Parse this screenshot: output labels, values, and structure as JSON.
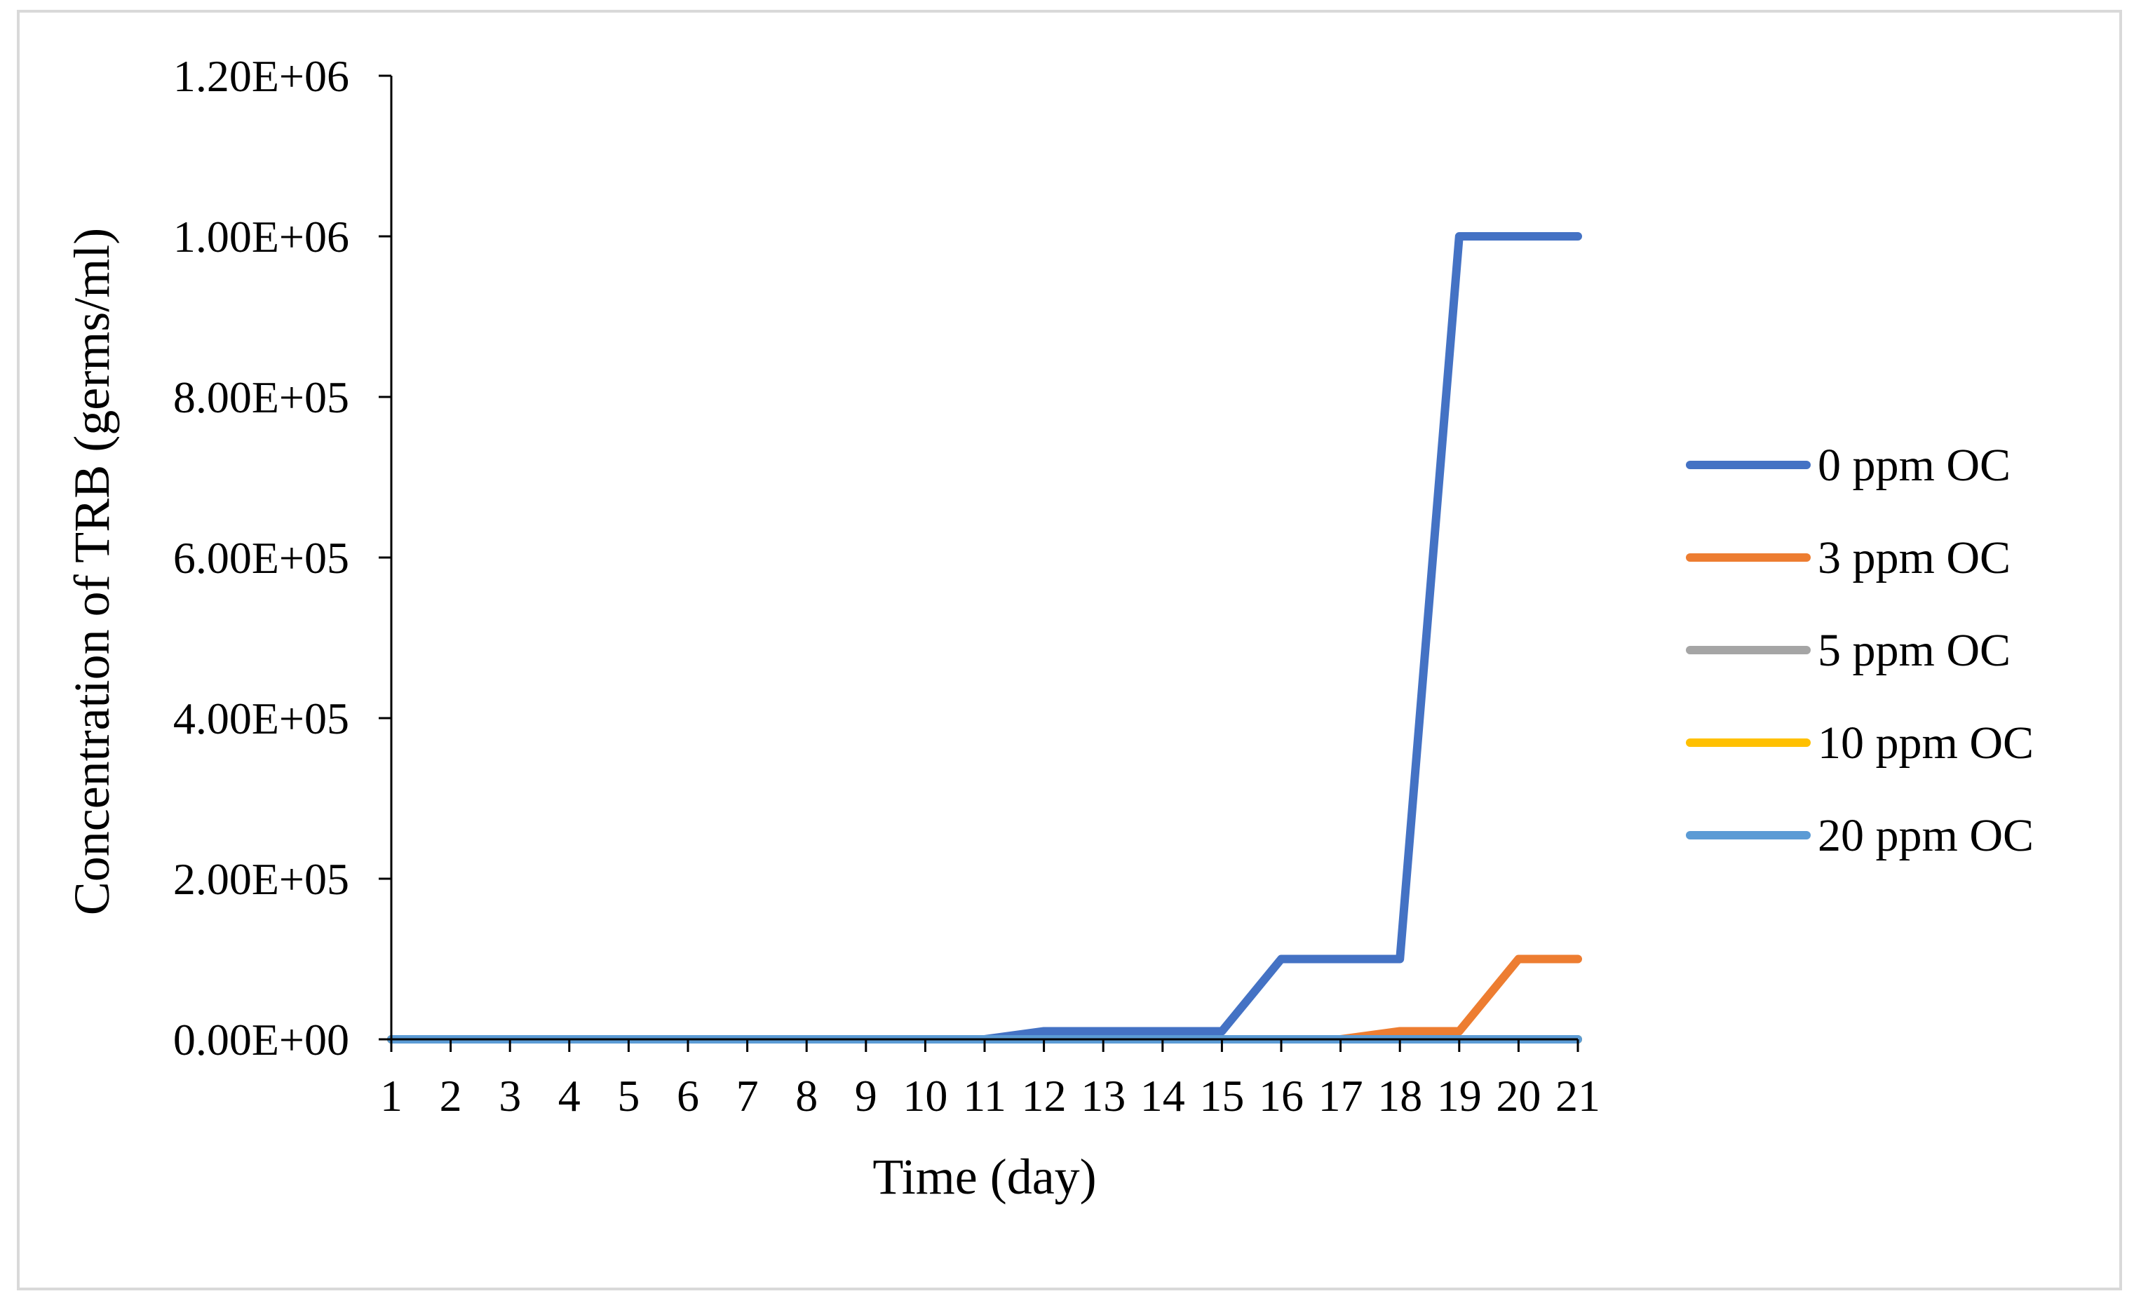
{
  "chart_data": {
    "type": "line",
    "title": "",
    "xlabel": "Time (day)",
    "ylabel": "Concentration of TRB (germs/ml)",
    "ylim": [
      0,
      1200000
    ],
    "y_ticks": [
      "0.00E+00",
      "2.00E+05",
      "4.00E+05",
      "6.00E+05",
      "8.00E+05",
      "1.00E+06",
      "1.20E+06"
    ],
    "y_tick_values": [
      0,
      200000,
      400000,
      600000,
      800000,
      1000000,
      1200000
    ],
    "categories": [
      "1",
      "2",
      "3",
      "4",
      "5",
      "6",
      "7",
      "8",
      "9",
      "10",
      "11",
      "12",
      "13",
      "14",
      "15",
      "16",
      "17",
      "18",
      "19",
      "20",
      "21"
    ],
    "grid": false,
    "legend_position": "right",
    "series": [
      {
        "name": "0 ppm OC",
        "color": "#4472C4",
        "values": [
          0,
          0,
          0,
          0,
          0,
          0,
          0,
          0,
          0,
          0,
          0,
          10000,
          10000,
          10000,
          10000,
          100000,
          100000,
          100000,
          1000000,
          1000000,
          1000000
        ]
      },
      {
        "name": "3 ppm OC",
        "color": "#ED7D31",
        "values": [
          0,
          0,
          0,
          0,
          0,
          0,
          0,
          0,
          0,
          0,
          0,
          0,
          0,
          0,
          0,
          0,
          0,
          10000,
          10000,
          100000,
          100000
        ]
      },
      {
        "name": "5 ppm OC",
        "color": "#A5A5A5",
        "values": [
          0,
          0,
          0,
          0,
          0,
          0,
          0,
          0,
          0,
          0,
          0,
          0,
          0,
          0,
          0,
          0,
          0,
          0,
          0,
          0,
          0
        ]
      },
      {
        "name": "10 ppm OC",
        "color": "#FFC000",
        "values": [
          0,
          0,
          0,
          0,
          0,
          0,
          0,
          0,
          0,
          0,
          0,
          0,
          0,
          0,
          0,
          0,
          0,
          0,
          0,
          0,
          0
        ]
      },
      {
        "name": "20 ppm OC",
        "color": "#5B9BD5",
        "values": [
          0,
          0,
          0,
          0,
          0,
          0,
          0,
          0,
          0,
          0,
          0,
          0,
          0,
          0,
          0,
          0,
          0,
          0,
          0,
          0,
          0
        ]
      }
    ]
  }
}
